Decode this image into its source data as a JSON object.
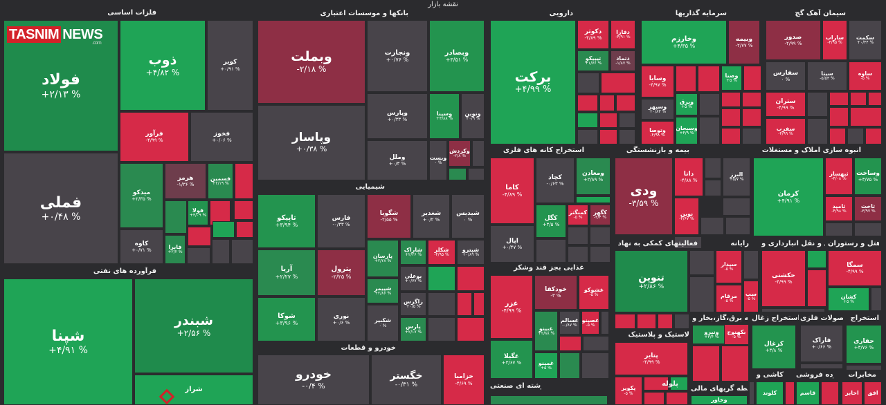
{
  "logo": {
    "text_a": "TASNIM",
    "text_b": "NEWS",
    "domain": ".com"
  },
  "chart_data": {
    "type": "heatmap",
    "title": "نقشه بازار",
    "sections": [
      {
        "name": "فلزات اساسی",
        "tiles": [
          {
            "name": "فولاد",
            "change": "+۲/۱۳ %",
            "value": 2.13,
            "color": "#1f8b4c"
          },
          {
            "name": "فملی",
            "change": "+۰/۴۸ %",
            "value": 0.48,
            "color": "#48444a"
          },
          {
            "name": "ذوب",
            "change": "+۴/۸۲ %",
            "value": 4.82,
            "color": "#1fa456"
          },
          {
            "name": "کویر",
            "change": "+۰/۹۱ %",
            "value": 0.91,
            "color": "#48444a"
          },
          {
            "name": "فرآور",
            "change": "-۴/۹۹ %",
            "value": -4.99,
            "color": "#d62a48"
          },
          {
            "name": "فخوز",
            "change": "+۰/۰۶ %",
            "value": 0.06,
            "color": "#48444a"
          },
          {
            "name": "میدکو",
            "change": "+۲/۳۵ %",
            "value": 2.35,
            "color": "#2a8a50"
          },
          {
            "name": "هرمز",
            "change": "-۱/۳۶ %",
            "value": -1.36,
            "color": "#6e3d4c"
          },
          {
            "name": "فسمین",
            "change": "+۲/۱۹ %",
            "value": 2.19,
            "color": "#2a8a50"
          },
          {
            "name": "فولا",
            "change": "+۳/۰۹ %",
            "value": 3.09,
            "color": "#23944f"
          },
          {
            "name": "کاوه",
            "change": "+۰/۷۱ %",
            "value": 0.71,
            "color": "#48444a"
          },
          {
            "name": "فابرا",
            "change": "+۲/۲ %",
            "value": 2.2,
            "color": "#2a8a50"
          }
        ]
      },
      {
        "name": "فرآورده های نفتی",
        "tiles": [
          {
            "name": "شپنا",
            "change": "+۴/۹۱ %",
            "value": 4.91,
            "color": "#1fa456"
          },
          {
            "name": "شبندر",
            "change": "+۲/۵۶ %",
            "value": 2.56,
            "color": "#1f8b4c"
          },
          {
            "name": "شراز",
            "change": "",
            "value": null,
            "color": "#1fa456"
          }
        ]
      },
      {
        "name": "بانکها و موسسات اعتباری",
        "tiles": [
          {
            "name": "وبملت",
            "change": "-۲/۱۸ %",
            "value": -2.18,
            "color": "#8e2f45"
          },
          {
            "name": "وپاسار",
            "change": "+۰/۳۸ %",
            "value": 0.38,
            "color": "#48444a"
          },
          {
            "name": "ونجارت",
            "change": "+۰/۷۶ %",
            "value": 0.76,
            "color": "#48444a"
          },
          {
            "name": "وبصادر",
            "change": "+۳/۵۱ %",
            "value": 3.51,
            "color": "#23944f"
          },
          {
            "name": "وپارس",
            "change": "+۰/۳۳ %",
            "value": 0.33,
            "color": "#48444a"
          },
          {
            "name": "وسینا",
            "change": "+۳/۸۸ %",
            "value": 3.88,
            "color": "#23944f"
          },
          {
            "name": "ونوین",
            "change": "+۰/۹ %",
            "value": 0.9,
            "color": "#48444a"
          },
          {
            "name": "وملل",
            "change": "+۰/۳ %",
            "value": 0.3,
            "color": "#48444a"
          },
          {
            "name": "وبست",
            "change": "۰ %",
            "value": 0,
            "color": "#48444a"
          },
          {
            "name": "وکردش",
            "change": "-۲/۸ %",
            "value": -2.8,
            "color": "#8e2f45"
          }
        ]
      },
      {
        "name": "شیمیایی",
        "tiles": [
          {
            "name": "تاپیکو",
            "change": "+۳/۹۴ %",
            "value": 3.94,
            "color": "#23944f"
          },
          {
            "name": "فارس",
            "change": "-۰/۳۳ %",
            "value": -0.33,
            "color": "#48444a"
          },
          {
            "name": "شگویا",
            "change": "-۲/۵۵ %",
            "value": -2.55,
            "color": "#8e2f45"
          },
          {
            "name": "شغدیر",
            "change": "+۰/۲ %",
            "value": 0.2,
            "color": "#48444a"
          },
          {
            "name": "شیدیس",
            "change": "۰ %",
            "value": 0,
            "color": "#48444a"
          },
          {
            "name": "آریا",
            "change": "+۲/۲۷ %",
            "value": 2.27,
            "color": "#2a8a50"
          },
          {
            "name": "پترول",
            "change": "-۲/۲۵ %",
            "value": -2.25,
            "color": "#8e2f45"
          },
          {
            "name": "پارسان",
            "change": "+۲/۲۸ %",
            "value": 2.28,
            "color": "#2a8a50"
          },
          {
            "name": "شاراک",
            "change": "+۲/۲۶ %",
            "value": 2.26,
            "color": "#2a8a50"
          },
          {
            "name": "شکلر",
            "change": "-۴/۹۵ %",
            "value": -4.95,
            "color": "#d62a48"
          },
          {
            "name": "شپترو",
            "change": "+۰/۸۹ %",
            "value": 0.89,
            "color": "#48444a"
          },
          {
            "name": "بوعلی",
            "change": "+۰/۷۷ %",
            "value": 0.77,
            "color": "#48444a"
          },
          {
            "name": "شوکا",
            "change": "+۳/۹۶ %",
            "value": 3.96,
            "color": "#23944f"
          },
          {
            "name": "شپیمر",
            "change": "+۲/۸۶ %",
            "value": 2.86,
            "color": "#2a8a50"
          },
          {
            "name": "زاگرس",
            "change": "+۰/۵ %",
            "value": 0.5,
            "color": "#48444a"
          },
          {
            "name": "نوری",
            "change": "+۰/۶ %",
            "value": 0.6,
            "color": "#48444a"
          },
          {
            "name": "شکبیر",
            "change": "۰ %",
            "value": 0,
            "color": "#48444a"
          },
          {
            "name": "پارس",
            "change": "+۲/۱۷ %",
            "value": 2.17,
            "color": "#2a8a50"
          }
        ]
      },
      {
        "name": "خودرو و قطعات",
        "tiles": [
          {
            "name": "خودرو",
            "change": "-۰/۴ %",
            "value": -0.4,
            "color": "#48444a"
          },
          {
            "name": "خگستر",
            "change": "-۰/۳۱ %",
            "value": -0.31,
            "color": "#48444a"
          },
          {
            "name": "خزامیا",
            "change": "-۴/۶۹ %",
            "value": -4.69,
            "color": "#d62a48"
          }
        ]
      },
      {
        "name": "دارویی",
        "tiles": [
          {
            "name": "برکت",
            "change": "+۴/۹۹ %",
            "value": 4.99,
            "color": "#1fa456"
          },
          {
            "name": "دکوثر",
            "change": "-۴/۸۹ %",
            "value": -4.89,
            "color": "#d62a48"
          },
          {
            "name": "دفارا",
            "change": "-۴/۹۱ %",
            "value": -4.91,
            "color": "#d62a48"
          },
          {
            "name": "تیپیکو",
            "change": "+۱/۷۶ %",
            "value": 1.76,
            "color": "#2a8a50"
          },
          {
            "name": "دتماد",
            "change": "-۱/۸۷ %",
            "value": -1.87,
            "color": "#6e3d4c"
          }
        ]
      },
      {
        "name": "سرمایه گذاریها",
        "tiles": [
          {
            "name": "وخارزم",
            "change": "+۴/۳۵ %",
            "value": 4.35,
            "color": "#1fa456"
          },
          {
            "name": "وبیمه",
            "change": "-۲/۷۷ %",
            "value": -2.77,
            "color": "#8e2f45"
          },
          {
            "name": "وسایا",
            "change": "-۴/۹۷ %",
            "value": -4.97,
            "color": "#d62a48"
          },
          {
            "name": "وصنا",
            "change": "+۵ %",
            "value": 5,
            "color": "#1fa456"
          },
          {
            "name": "وسپهر",
            "change": "+۰/۸۳ %",
            "value": 0.83,
            "color": "#48444a"
          },
          {
            "name": "وبرق",
            "change": "+۵ %",
            "value": 5,
            "color": "#1fa456"
          },
          {
            "name": "وتوصا",
            "change": "-۴/۹۸ %",
            "value": -4.98,
            "color": "#d62a48"
          },
          {
            "name": "وسبحان",
            "change": "+۴/۹ %",
            "value": 4.9,
            "color": "#1fa456"
          }
        ]
      },
      {
        "name": "سیمان آهک گچ",
        "tiles": [
          {
            "name": "صدور",
            "change": "-۲/۹۹ %",
            "value": -2.99,
            "color": "#8e2f45"
          },
          {
            "name": "ساراب",
            "change": "-۴/۹۵ %",
            "value": -4.95,
            "color": "#d62a48"
          },
          {
            "name": "سکمت",
            "change": "+۰/۴۴ %",
            "value": 0.44,
            "color": "#48444a"
          },
          {
            "name": "سفارس",
            "change": "۰ %",
            "value": 0,
            "color": "#48444a"
          },
          {
            "name": "سیتا",
            "change": "-۵/۵۳ %",
            "value": -5.53,
            "color": "#48444a"
          },
          {
            "name": "ساوه",
            "change": "-۵ %",
            "value": -5,
            "color": "#d62a48"
          },
          {
            "name": "ستران",
            "change": "-۴/۹۹ %",
            "value": -4.99,
            "color": "#d62a48"
          },
          {
            "name": "سفرب",
            "change": "-۴/۹۹ %",
            "value": -4.99,
            "color": "#d62a48"
          }
        ]
      },
      {
        "name": "استخراج کانه های فلزی",
        "tiles": [
          {
            "name": "کاما",
            "change": "-۴/۸۹ %",
            "value": -4.89,
            "color": "#d62a48"
          },
          {
            "name": "کچاد",
            "change": "-۰/۶۳ %",
            "value": -0.63,
            "color": "#48444a"
          },
          {
            "name": "ومعادن",
            "change": "+۲/۸۹ %",
            "value": 2.89,
            "color": "#2a8a50"
          },
          {
            "name": "کگل",
            "change": "+۳/۵ %",
            "value": 3.5,
            "color": "#23944f"
          },
          {
            "name": "کمنگنز",
            "change": "-۵ %",
            "value": -5,
            "color": "#d62a48"
          },
          {
            "name": "کگهر",
            "change": "-۳/۴ %",
            "value": -3.4,
            "color": "#8e2f45"
          },
          {
            "name": "اپال",
            "change": "+۰/۴۷ %",
            "value": 0.47,
            "color": "#48444a"
          }
        ]
      },
      {
        "name": "غذایی بجز قند وشکر",
        "tiles": [
          {
            "name": "غزر",
            "change": "-۴/۹۹ %",
            "value": -4.99,
            "color": "#d62a48"
          },
          {
            "name": "خودکفا",
            "change": "-۳ %",
            "value": -3,
            "color": "#8e2f45"
          },
          {
            "name": "غشوکو",
            "change": "-۵ %",
            "value": -5,
            "color": "#d62a48"
          },
          {
            "name": "غبینو",
            "change": "+۲/۸۸ %",
            "value": 2.88,
            "color": "#2a8a50"
          },
          {
            "name": "غسالم",
            "change": "-۰/۸۷ %",
            "value": -0.87,
            "color": "#48444a"
          },
          {
            "name": "غصینو",
            "change": "-۵ %",
            "value": -5,
            "color": "#d62a48"
          },
          {
            "name": "غگیلا",
            "change": "+۳/۶۷ %",
            "value": 3.67,
            "color": "#23944f"
          },
          {
            "name": "غمینو",
            "change": "+۵ %",
            "value": 5,
            "color": "#1fa456"
          }
        ]
      },
      {
        "name": "چندرشته ای صنعتی",
        "tiles": []
      },
      {
        "name": "بیمه و بازنشستگی",
        "tiles": [
          {
            "name": "ودی",
            "change": "-۳/۵۹ %",
            "value": -3.59,
            "color": "#8e2f45"
          },
          {
            "name": "دانا",
            "change": "-۴/۸۸ %",
            "value": -4.88,
            "color": "#d62a48"
          },
          {
            "name": "البرز",
            "change": "+۵/۷ %",
            "value": 5.7,
            "color": "#48444a"
          },
          {
            "name": "نوین",
            "change": "-۴/۶۷ %",
            "value": -4.67,
            "color": "#d62a48"
          }
        ]
      },
      {
        "name": "انبوه سازی املاک و مستغلات",
        "tiles": [
          {
            "name": "کرمان",
            "change": "+۴/۹۱ %",
            "value": 4.91,
            "color": "#1fa456"
          },
          {
            "name": "ثبهساز",
            "change": "-۴/۰۸ %",
            "value": -4.08,
            "color": "#d62a48"
          },
          {
            "name": "وساخت",
            "change": "+۳/۷۵ %",
            "value": 3.75,
            "color": "#23944f"
          },
          {
            "name": "ثامید",
            "change": "-۴/۹۸ %",
            "value": -4.98,
            "color": "#d62a48"
          },
          {
            "name": "ثاخت",
            "change": "-۳/۹۷ %",
            "value": -3.97,
            "color": "#8e2f45"
          }
        ]
      },
      {
        "name": "فعالیتهای کمکی به نهاد",
        "tiles": [
          {
            "name": "تنوین",
            "change": "+۲/۸۶ %",
            "value": 2.86,
            "color": "#1f8b4c"
          }
        ]
      },
      {
        "name": "رایانه",
        "tiles": [
          {
            "name": "سیدار",
            "change": "-۵ %",
            "value": -5,
            "color": "#d62a48"
          },
          {
            "name": "مرقام",
            "change": "-۵ %",
            "value": -5,
            "color": "#d62a48"
          },
          {
            "name": "سپ",
            "change": "-۵ %",
            "value": -5,
            "color": "#d62a48"
          }
        ]
      },
      {
        "name": "حمل و نقل انبارداری و",
        "tiles": [
          {
            "name": "حکشتی",
            "change": "-۴/۹۹ %",
            "value": -4.99,
            "color": "#d62a48"
          }
        ]
      },
      {
        "name": "هتل و رستوران",
        "tiles": [
          {
            "name": "سمگا",
            "change": "-۴/۹۹ %",
            "value": -4.99,
            "color": "#d62a48"
          },
          {
            "name": "کشان",
            "change": "+۵ %",
            "value": 5,
            "color": "#1fa456"
          }
        ]
      },
      {
        "name": "لاستیک و پلاستیک",
        "tiles": [
          {
            "name": "پتایر",
            "change": "-۴/۹۹ %",
            "value": -4.99,
            "color": "#d62a48"
          },
          {
            "name": "پکویر",
            "change": "-۵ %",
            "value": -5,
            "color": "#d62a48"
          }
        ]
      },
      {
        "name": "عرضه برق،گاز،بخار و",
        "tiles": [
          {
            "name": "ونیرو",
            "change": "+۳/۴ %",
            "value": 3.4,
            "color": "#23944f"
          },
          {
            "name": "بکهنوج",
            "change": "-۵ %",
            "value": -5,
            "color": "#d62a48"
          }
        ]
      },
      {
        "name": "استخراج زغال",
        "tiles": [
          {
            "name": "کزغال",
            "change": "+۳/۸ %",
            "value": 3.8,
            "color": "#23944f"
          }
        ]
      },
      {
        "name": "محصولات فلزی",
        "tiles": [
          {
            "name": "فاراک",
            "change": "+۰/۶۶ %",
            "value": 0.66,
            "color": "#48444a"
          }
        ]
      },
      {
        "name": "استخراج",
        "tiles": [
          {
            "name": "حفاری",
            "change": "+۳/۷۶ %",
            "value": 3.76,
            "color": "#23944f"
          }
        ]
      },
      {
        "name": "کاشی و",
        "tiles": [
          {
            "name": "کلوند",
            "change": "",
            "value": null,
            "color": "#1fa456"
          }
        ]
      },
      {
        "name": "خرده فروشی",
        "tiles": [
          {
            "name": "قاسم",
            "change": "",
            "value": null,
            "color": "#1fa456"
          }
        ]
      },
      {
        "name": "مخابرات",
        "tiles": [
          {
            "name": "اخابر",
            "change": "",
            "value": null,
            "color": "#d62a48"
          },
          {
            "name": "افق",
            "change": "",
            "value": null,
            "color": "#d62a48"
          }
        ]
      },
      {
        "name": "واسطه گریهای مالی",
        "tiles": [
          {
            "name": "وخاور",
            "change": "",
            "value": null,
            "color": "#1fa456"
          }
        ]
      },
      {
        "name": "پلوله",
        "tiles": []
      }
    ]
  }
}
